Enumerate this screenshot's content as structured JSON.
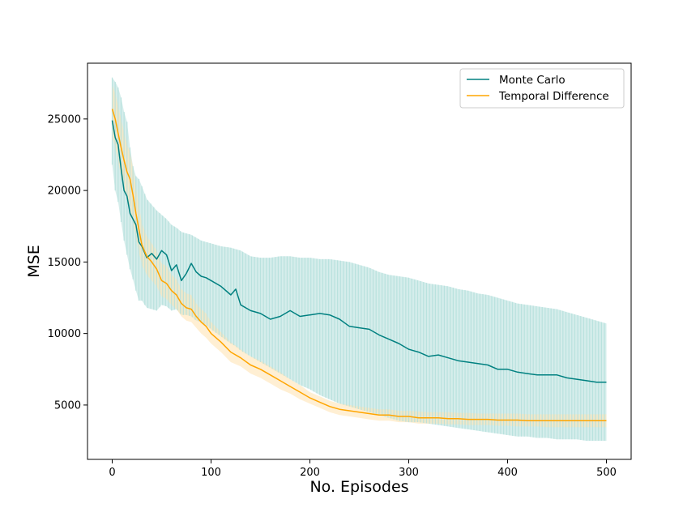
{
  "chart_data": {
    "type": "line",
    "title": "",
    "xlabel": "No. Episodes",
    "ylabel": "MSE",
    "xlim": [
      -25,
      525
    ],
    "ylim": [
      1200,
      28900
    ],
    "xticks": [
      0,
      100,
      200,
      300,
      400,
      500
    ],
    "yticks": [
      5000,
      10000,
      15000,
      20000,
      25000
    ],
    "grid": false,
    "legend_position": "top-right",
    "series": [
      {
        "name": "Monte Carlo",
        "color": "#008080",
        "band_color": "#b2dfdb",
        "x": [
          0,
          3,
          6,
          9,
          12,
          15,
          18,
          21,
          24,
          27,
          30,
          35,
          40,
          45,
          50,
          55,
          60,
          65,
          70,
          75,
          80,
          85,
          90,
          95,
          100,
          110,
          120,
          125,
          130,
          140,
          150,
          160,
          170,
          180,
          190,
          200,
          210,
          220,
          230,
          240,
          250,
          260,
          270,
          280,
          290,
          300,
          310,
          320,
          330,
          340,
          350,
          360,
          370,
          380,
          390,
          400,
          410,
          420,
          430,
          440,
          450,
          460,
          470,
          480,
          490,
          500
        ],
        "y": [
          24900,
          23700,
          23200,
          21500,
          20000,
          19600,
          18400,
          18000,
          17600,
          16400,
          16100,
          15300,
          15600,
          15200,
          15800,
          15500,
          14400,
          14800,
          13700,
          14200,
          14900,
          14300,
          14000,
          13900,
          13700,
          13300,
          12700,
          13100,
          12000,
          11600,
          11400,
          11000,
          11200,
          11600,
          11200,
          11300,
          11400,
          11300,
          11000,
          10500,
          10400,
          10300,
          9900,
          9600,
          9300,
          8900,
          8700,
          8400,
          8500,
          8300,
          8100,
          8000,
          7900,
          7800,
          7500,
          7500,
          7300,
          7200,
          7100,
          7100,
          7100,
          6900,
          6800,
          6700,
          6600,
          6600
        ],
        "lower": [
          21800,
          20000,
          19200,
          17800,
          16500,
          15500,
          14500,
          13800,
          13000,
          12300,
          12300,
          11800,
          11700,
          11600,
          12000,
          11900,
          11600,
          11700,
          11300,
          11300,
          11200,
          10900,
          10800,
          10600,
          10300,
          9800,
          9300,
          9100,
          8800,
          8400,
          8000,
          7600,
          7200,
          6800,
          6400,
          6100,
          5700,
          5400,
          5100,
          4900,
          4700,
          4500,
          4300,
          4100,
          3900,
          3800,
          3800,
          3700,
          3600,
          3500,
          3400,
          3300,
          3200,
          3100,
          3000,
          2900,
          2800,
          2800,
          2700,
          2700,
          2600,
          2600,
          2600,
          2500,
          2500,
          2500
        ],
        "upper": [
          27900,
          27600,
          27200,
          26500,
          25500,
          24800,
          23000,
          21700,
          21000,
          20800,
          20300,
          19400,
          19000,
          18600,
          18300,
          18000,
          17600,
          17400,
          17100,
          17000,
          16900,
          16700,
          16500,
          16400,
          16300,
          16100,
          16000,
          15900,
          15800,
          15400,
          15300,
          15300,
          15400,
          15400,
          15300,
          15300,
          15200,
          15200,
          15100,
          15000,
          14800,
          14600,
          14300,
          14100,
          14000,
          13900,
          13700,
          13500,
          13400,
          13300,
          13100,
          13000,
          12800,
          12700,
          12500,
          12300,
          12100,
          12000,
          11900,
          11800,
          11700,
          11500,
          11300,
          11100,
          10900,
          10700
        ]
      },
      {
        "name": "Temporal Difference",
        "color": "#ffa500",
        "band_color": "#ffe4b5",
        "x": [
          0,
          3,
          6,
          9,
          12,
          15,
          18,
          21,
          24,
          27,
          30,
          35,
          40,
          45,
          50,
          55,
          60,
          65,
          70,
          75,
          80,
          85,
          90,
          95,
          100,
          110,
          120,
          130,
          140,
          150,
          160,
          170,
          180,
          190,
          200,
          210,
          220,
          230,
          240,
          250,
          260,
          270,
          280,
          290,
          300,
          310,
          320,
          330,
          340,
          350,
          360,
          370,
          380,
          390,
          400,
          410,
          420,
          430,
          440,
          450,
          460,
          470,
          480,
          490,
          500
        ],
        "y": [
          25700,
          25000,
          24000,
          23000,
          22100,
          21300,
          20800,
          19700,
          18400,
          17300,
          16200,
          15400,
          15000,
          14500,
          13700,
          13500,
          13000,
          12700,
          12100,
          11800,
          11700,
          11200,
          10800,
          10500,
          10000,
          9400,
          8700,
          8300,
          7800,
          7500,
          7100,
          6700,
          6300,
          5900,
          5500,
          5200,
          4900,
          4700,
          4600,
          4500,
          4400,
          4300,
          4300,
          4200,
          4200,
          4100,
          4100,
          4100,
          4050,
          4050,
          4000,
          4000,
          4000,
          3950,
          3950,
          3950,
          3900,
          3900,
          3900,
          3900,
          3900,
          3900,
          3900,
          3900,
          3900
        ],
        "lower": [
          23800,
          23000,
          22000,
          21000,
          20200,
          19400,
          18800,
          17800,
          16700,
          15700,
          14800,
          14100,
          13700,
          13300,
          12600,
          12400,
          12000,
          11700,
          11200,
          10900,
          10800,
          10400,
          10000,
          9700,
          9300,
          8700,
          8000,
          7700,
          7200,
          6900,
          6500,
          6100,
          5800,
          5400,
          5100,
          4800,
          4500,
          4300,
          4200,
          4100,
          4000,
          3900,
          3900,
          3800,
          3800,
          3700,
          3700,
          3700,
          3650,
          3650,
          3600,
          3600,
          3600,
          3550,
          3550,
          3500,
          3500,
          3500,
          3450,
          3450,
          3450,
          3450,
          3450,
          3450,
          3450
        ],
        "upper": [
          27400,
          26800,
          25900,
          25000,
          24000,
          23200,
          22700,
          21600,
          20200,
          19000,
          17700,
          16800,
          16300,
          15800,
          14900,
          14700,
          14100,
          13800,
          13100,
          12800,
          12700,
          12100,
          11700,
          11400,
          10800,
          10100,
          9400,
          8900,
          8400,
          8100,
          7700,
          7300,
          6800,
          6400,
          5900,
          5600,
          5300,
          5100,
          5000,
          4900,
          4800,
          4700,
          4700,
          4600,
          4600,
          4550,
          4500,
          4500,
          4500,
          4450,
          4450,
          4400,
          4400,
          4400,
          4400,
          4400,
          4350,
          4350,
          4350,
          4350,
          4350,
          4350,
          4350,
          4350,
          4350
        ]
      }
    ]
  }
}
